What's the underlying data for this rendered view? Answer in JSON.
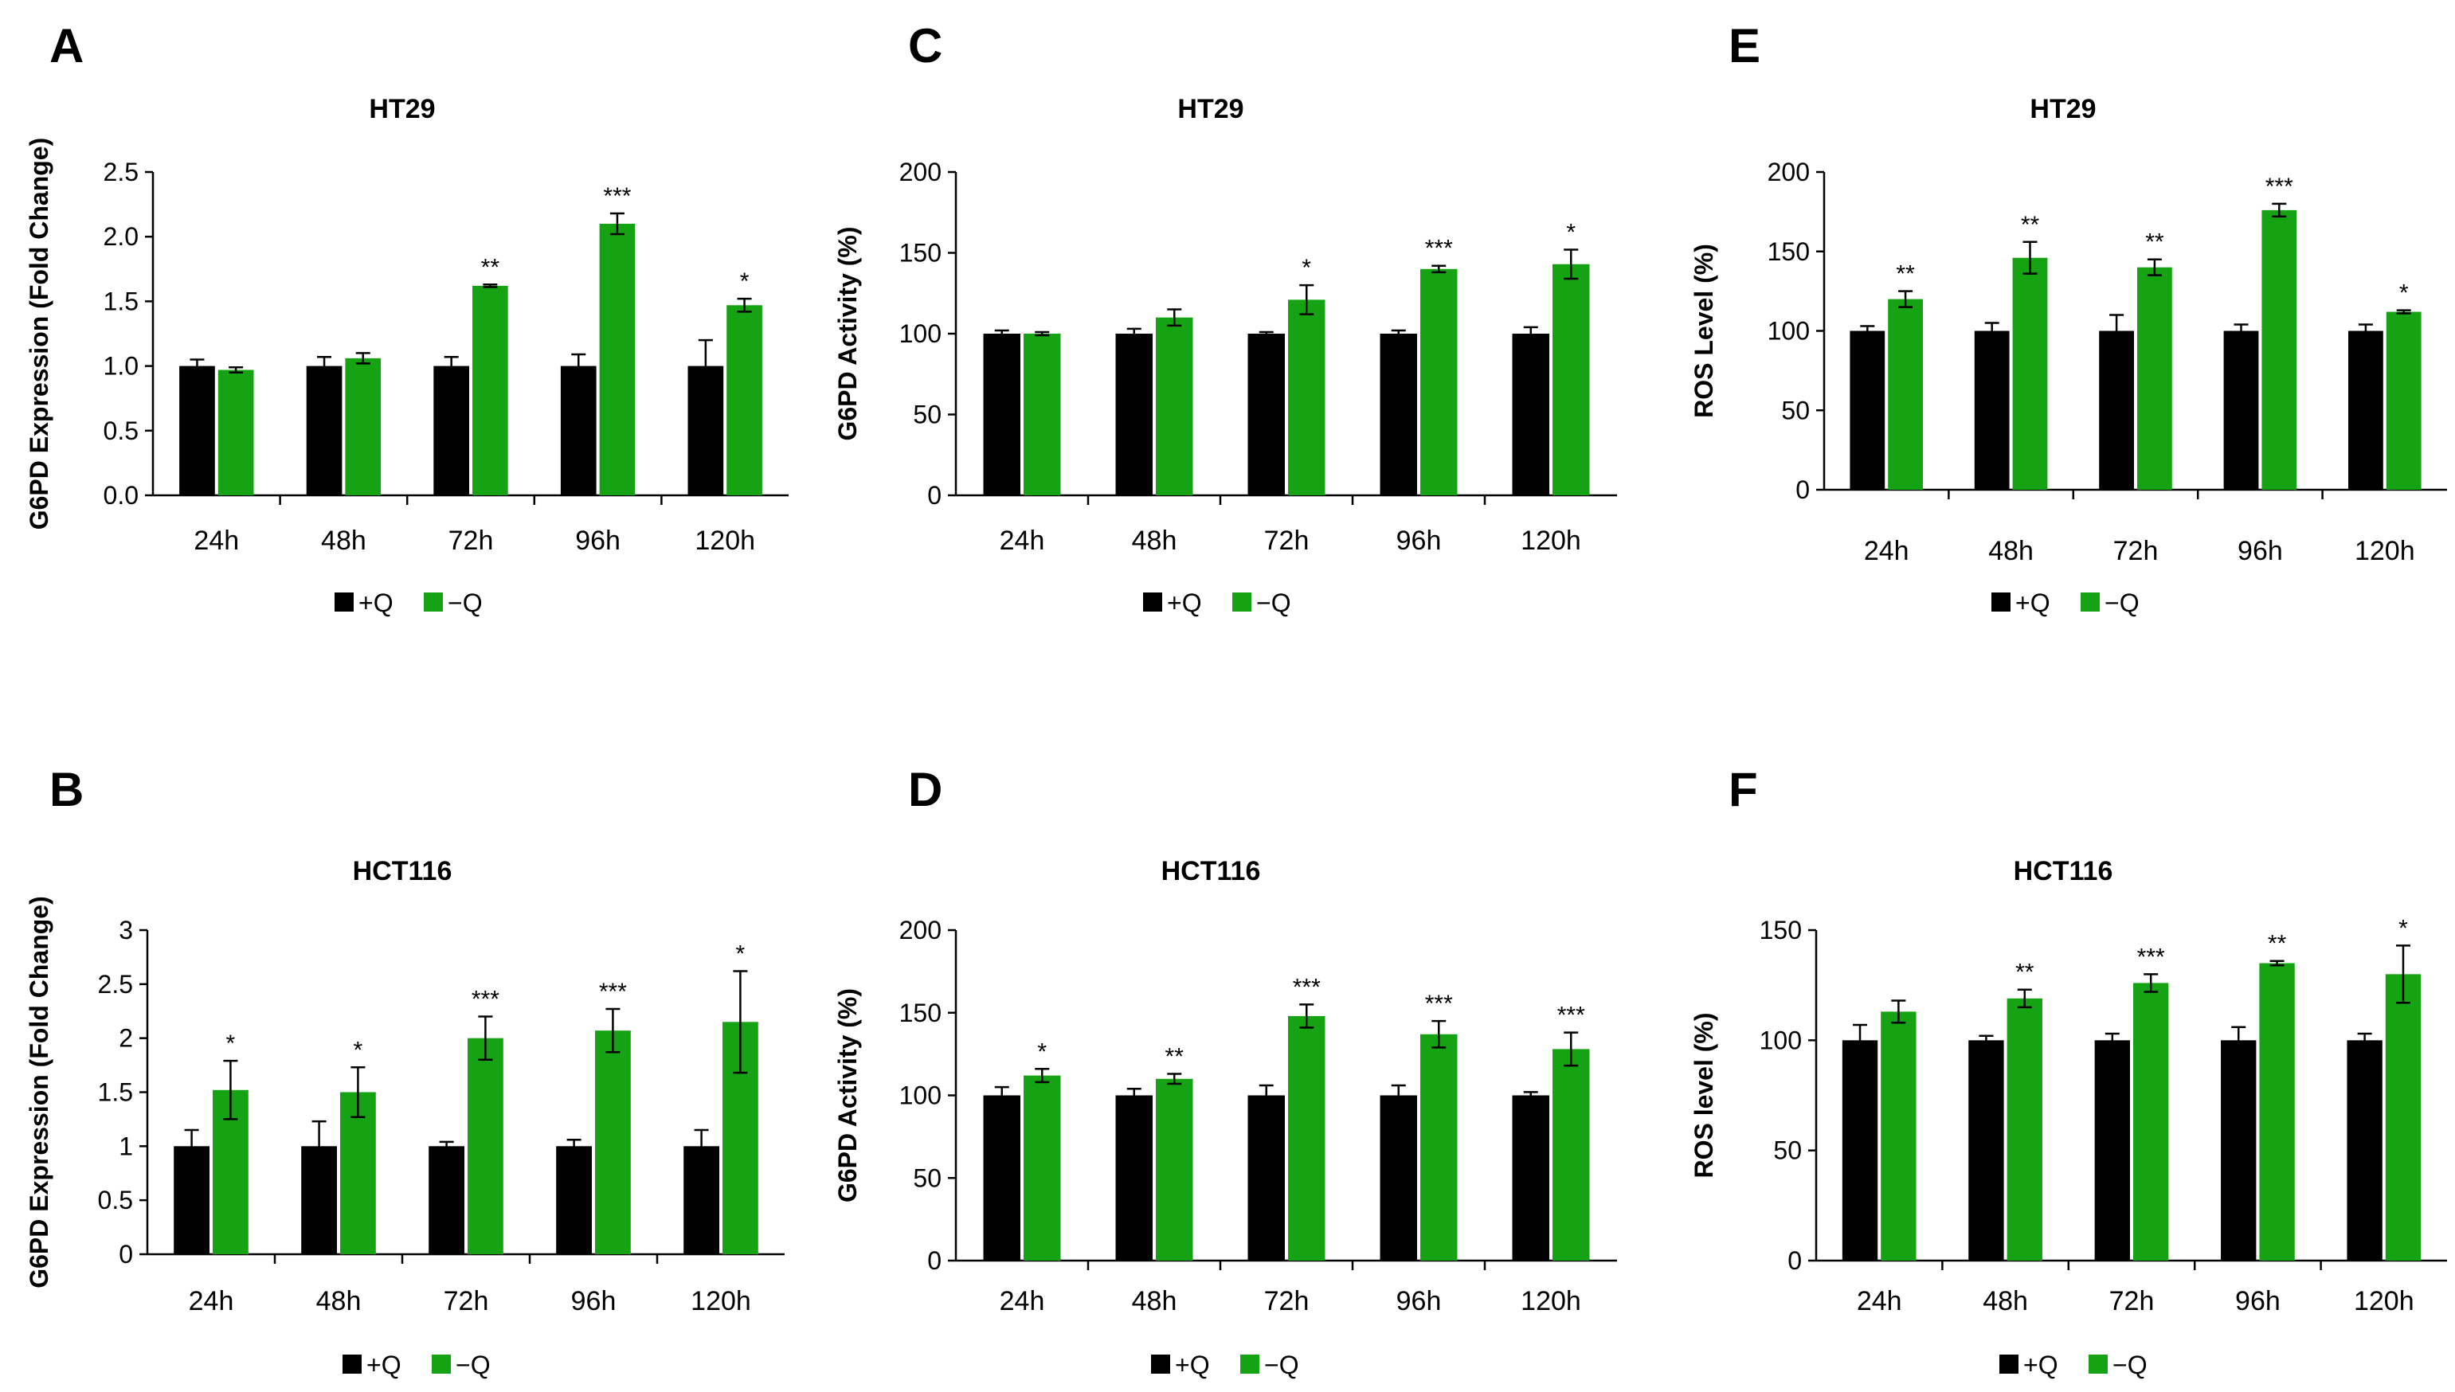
{
  "colors": {
    "plus_q": "#000000",
    "minus_q": "#16a313"
  },
  "chart_data": [
    {
      "panel": "A",
      "type": "bar",
      "title": "HT29",
      "ylabel": "G6PD Expression (Fold Change)",
      "ylim": [
        0,
        2.5
      ],
      "yticks": [
        "0.0",
        "0.5",
        "1.0",
        "1.5",
        "2.0",
        "2.5"
      ],
      "categories": [
        "24h",
        "48h",
        "72h",
        "96h",
        "120h"
      ],
      "series": [
        {
          "name": "+Q",
          "values": [
            1.0,
            1.0,
            1.0,
            1.0,
            1.0
          ],
          "errors": [
            0.05,
            0.07,
            0.07,
            0.09,
            0.2
          ]
        },
        {
          "name": "−Q",
          "values": [
            0.97,
            1.06,
            1.62,
            2.1,
            1.47
          ],
          "errors": [
            0.02,
            0.04,
            0.01,
            0.08,
            0.05
          ]
        }
      ],
      "significance": [
        "",
        "",
        "**",
        "***",
        "*"
      ],
      "legend": [
        "+Q",
        "−Q"
      ]
    },
    {
      "panel": "B",
      "type": "bar",
      "title": "HCT116",
      "ylabel": "G6PD Expression (Fold Change)",
      "ylim": [
        0,
        3
      ],
      "yticks": [
        "0",
        "0.5",
        "1",
        "1.5",
        "2",
        "2.5",
        "3"
      ],
      "categories": [
        "24h",
        "48h",
        "72h",
        "96h",
        "120h"
      ],
      "series": [
        {
          "name": "+Q",
          "values": [
            1.0,
            1.0,
            1.0,
            1.0,
            1.0
          ],
          "errors": [
            0.15,
            0.23,
            0.04,
            0.06,
            0.15
          ]
        },
        {
          "name": "−Q",
          "values": [
            1.52,
            1.5,
            2.0,
            2.07,
            2.15
          ],
          "errors": [
            0.27,
            0.23,
            0.2,
            0.2,
            0.47
          ]
        }
      ],
      "significance": [
        "*",
        "*",
        "***",
        "***",
        "*"
      ],
      "legend": [
        "+Q",
        "−Q"
      ]
    },
    {
      "panel": "C",
      "type": "bar",
      "title": "HT29",
      "ylabel": "G6PD Activity (%)",
      "ylim": [
        0,
        200
      ],
      "yticks": [
        "0",
        "50",
        "100",
        "150",
        "200"
      ],
      "categories": [
        "24h",
        "48h",
        "72h",
        "96h",
        "120h"
      ],
      "series": [
        {
          "name": "+Q",
          "values": [
            100,
            100,
            100,
            100,
            100
          ],
          "errors": [
            2,
            3,
            1,
            2,
            4
          ]
        },
        {
          "name": "−Q",
          "values": [
            100,
            110,
            121,
            140,
            143
          ],
          "errors": [
            1,
            5,
            9,
            2,
            9
          ]
        }
      ],
      "significance": [
        "",
        "",
        "*",
        "***",
        "*"
      ],
      "legend": [
        "+Q",
        "−Q"
      ]
    },
    {
      "panel": "D",
      "type": "bar",
      "title": "HCT116",
      "ylabel": "G6PD Activity (%)",
      "ylim": [
        0,
        200
      ],
      "yticks": [
        "0",
        "50",
        "100",
        "150",
        "200"
      ],
      "categories": [
        "24h",
        "48h",
        "72h",
        "96h",
        "120h"
      ],
      "series": [
        {
          "name": "+Q",
          "values": [
            100,
            100,
            100,
            100,
            100
          ],
          "errors": [
            5,
            4,
            6,
            6,
            2
          ]
        },
        {
          "name": "−Q",
          "values": [
            112,
            110,
            148,
            137,
            128
          ],
          "errors": [
            4,
            3,
            7,
            8,
            10
          ]
        }
      ],
      "significance": [
        "*",
        "**",
        "***",
        "***",
        "***"
      ],
      "legend": [
        "+Q",
        "−Q"
      ]
    },
    {
      "panel": "E",
      "type": "bar",
      "title": "HT29",
      "ylabel": "ROS Level (%)",
      "ylim": [
        0,
        200
      ],
      "yticks": [
        "0",
        "50",
        "100",
        "150",
        "200"
      ],
      "categories": [
        "24h",
        "48h",
        "72h",
        "96h",
        "120h"
      ],
      "series": [
        {
          "name": "+Q",
          "values": [
            100,
            100,
            100,
            100,
            100
          ],
          "errors": [
            3,
            5,
            10,
            4,
            4
          ]
        },
        {
          "name": "−Q",
          "values": [
            120,
            146,
            140,
            176,
            112
          ],
          "errors": [
            5,
            10,
            5,
            4,
            1
          ]
        }
      ],
      "significance": [
        "**",
        "**",
        "**",
        "***",
        "*"
      ],
      "legend": [
        "+Q",
        "−Q"
      ]
    },
    {
      "panel": "F",
      "type": "bar",
      "title": "HCT116",
      "ylabel": "ROS level (%)",
      "ylim": [
        0,
        150
      ],
      "yticks": [
        "0",
        "50",
        "100",
        "150"
      ],
      "categories": [
        "24h",
        "48h",
        "72h",
        "96h",
        "120h"
      ],
      "series": [
        {
          "name": "+Q",
          "values": [
            100,
            100,
            100,
            100,
            100
          ],
          "errors": [
            7,
            2,
            3,
            6,
            3
          ]
        },
        {
          "name": "−Q",
          "values": [
            113,
            119,
            126,
            135,
            130
          ],
          "errors": [
            5,
            4,
            4,
            1,
            13
          ]
        }
      ],
      "significance": [
        "",
        "**",
        "***",
        "**",
        "*"
      ],
      "legend": [
        "+Q",
        "−Q"
      ]
    }
  ]
}
